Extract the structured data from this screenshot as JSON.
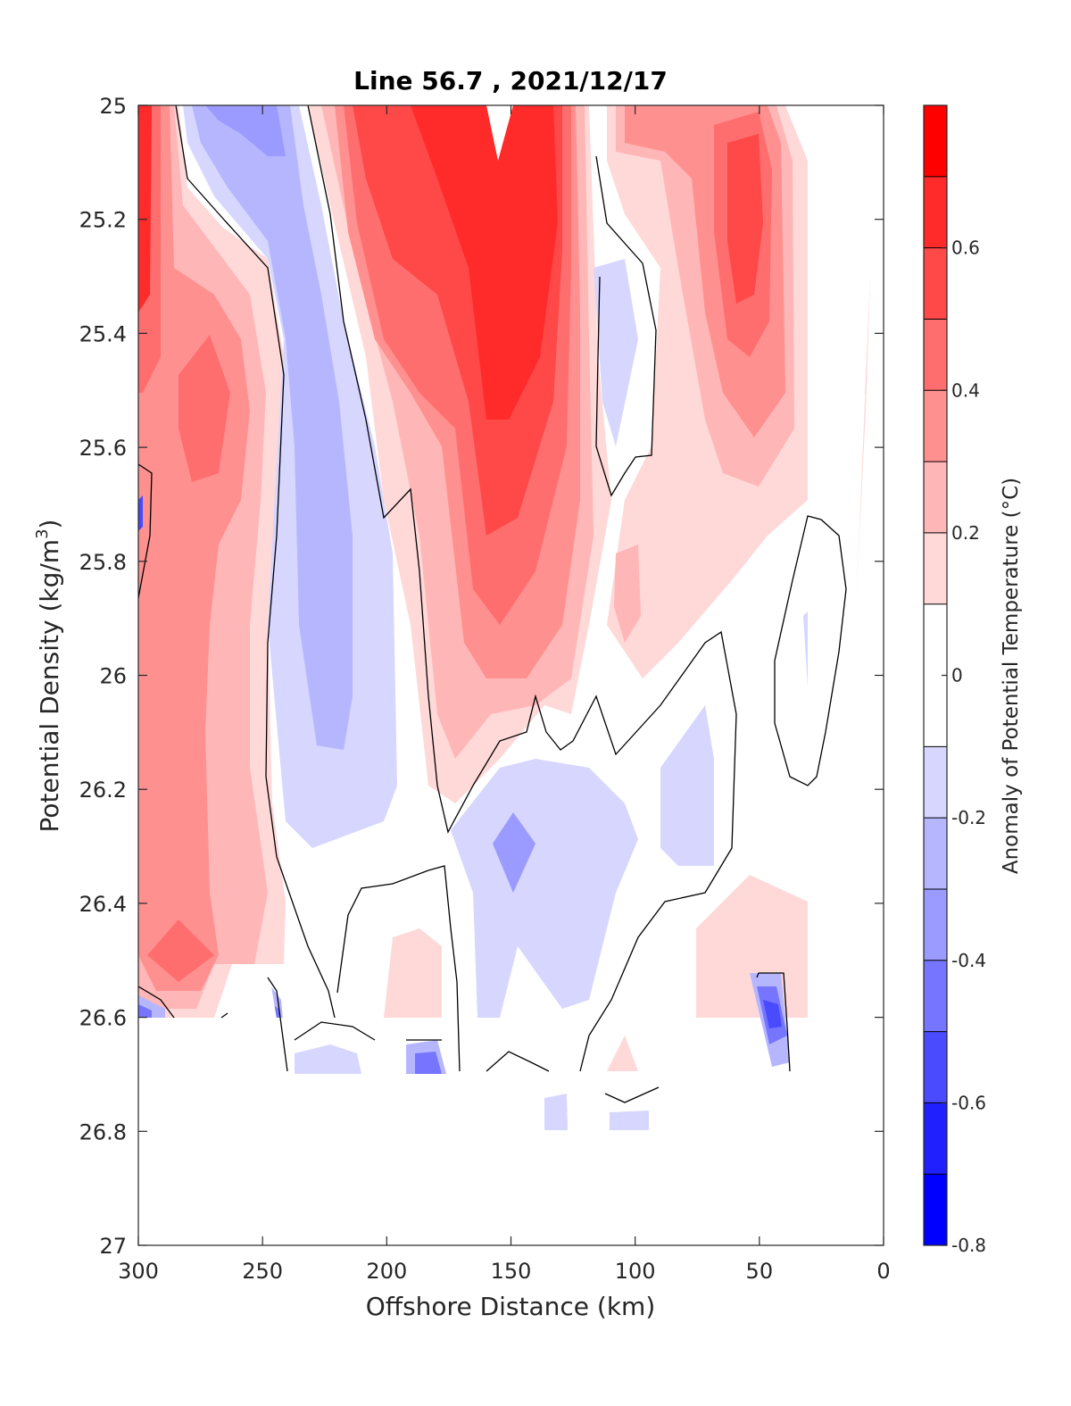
{
  "chart_data": {
    "type": "contourf",
    "title": "Line 56.7 , 2021/12/17",
    "xlabel": "Offshore Distance (km)",
    "ylabel": "Potential Density (kg/m",
    "ylabel_sup": "3",
    "ylabel_end": ")",
    "xlim": [
      300,
      0
    ],
    "ylim": [
      27,
      25
    ],
    "x_reversed": true,
    "y_reversed": true,
    "x_ticks": [
      300,
      250,
      200,
      150,
      100,
      50,
      0
    ],
    "y_ticks": [
      25,
      25.2,
      25.4,
      25.6,
      25.8,
      26,
      26.2,
      26.4,
      26.6,
      26.8,
      27
    ],
    "y_tick_labels": [
      "25",
      "25.2",
      "25.4",
      "25.6",
      "25.8",
      "26",
      "26.2",
      "26.4",
      "26.6",
      "26.8",
      "27"
    ],
    "zero_contour_lines": true,
    "colorbar": {
      "label": "Anomaly of Potential Temperature (°C)",
      "range": [
        -0.8,
        0.8
      ],
      "ticks": [
        -0.8,
        -0.6,
        -0.4,
        -0.2,
        0,
        0.2,
        0.4,
        0.6
      ],
      "tick_labels": [
        "-0.8",
        "-0.6",
        "-0.4",
        "-0.2",
        "0",
        "0.2",
        "0.4",
        "0.6"
      ],
      "levels": [
        -0.8,
        -0.7,
        -0.6,
        -0.5,
        -0.4,
        -0.3,
        -0.2,
        -0.1,
        0.1,
        0.2,
        0.3,
        0.4,
        0.5,
        0.6,
        0.7,
        0.8
      ],
      "colors": [
        "#0000ff",
        "#2020ff",
        "#4a4aff",
        "#7575ff",
        "#9a9aff",
        "#b6b6ff",
        "#d6d6ff",
        "#ffffff",
        "#ffd8d8",
        "#ffb6b6",
        "#ff9090",
        "#ff6e6e",
        "#ff4848",
        "#ff2a2a",
        "#ff0000"
      ]
    },
    "data_coverage": {
      "x": [
        300,
        270,
        240,
        210,
        180,
        150,
        120,
        90,
        60,
        30,
        10
      ],
      "max_density": [
        26.6,
        26.6,
        26.7,
        26.7,
        26.7,
        26.72,
        26.8,
        26.8,
        26.6,
        26.7,
        25.85
      ]
    },
    "anomaly_field": [
      {
        "x": 295,
        "y": 25.05,
        "a": 0.55
      },
      {
        "x": 298,
        "y": 25.3,
        "a": 0.6
      },
      {
        "x": 278,
        "y": 25.55,
        "a": 0.5
      },
      {
        "x": 285,
        "y": 26.5,
        "a": 0.5
      },
      {
        "x": 240,
        "y": 25.02,
        "a": -0.3
      },
      {
        "x": 230,
        "y": 26.0,
        "a": -0.3
      },
      {
        "x": 200,
        "y": 25.05,
        "a": 0.6
      },
      {
        "x": 150,
        "y": 25.25,
        "a": 0.7
      },
      {
        "x": 150,
        "y": 25.7,
        "a": 0.5
      },
      {
        "x": 150,
        "y": 26.3,
        "a": -0.25
      },
      {
        "x": 100,
        "y": 25.4,
        "a": -0.15
      },
      {
        "x": 90,
        "y": 26.15,
        "a": -0.15
      },
      {
        "x": 55,
        "y": 25.25,
        "a": 0.6
      },
      {
        "x": 20,
        "y": 25.9,
        "a": -0.15
      },
      {
        "x": 45,
        "y": 26.6,
        "a": -0.5
      },
      {
        "x": 185,
        "y": 26.7,
        "a": -0.5
      },
      {
        "x": 240,
        "y": 26.65,
        "a": -0.4
      }
    ]
  }
}
